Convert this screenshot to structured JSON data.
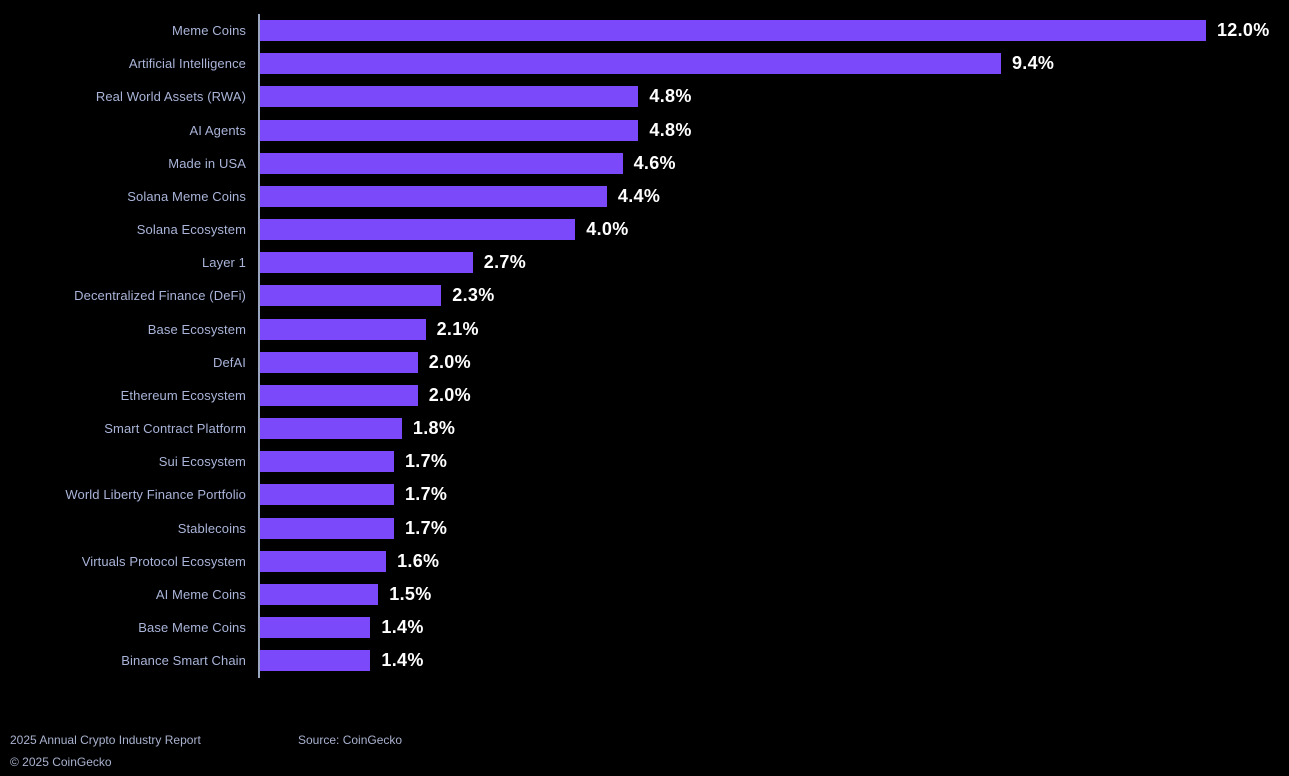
{
  "colors": {
    "background": "#000000",
    "bar": "#7c49fa",
    "category_label": "#a9b4d8",
    "value_label": "#ffffff",
    "axis_line": "#9aa7bf",
    "footer_text": "#a9b2ce"
  },
  "chart_data": {
    "type": "bar",
    "orientation": "horizontal",
    "title": "",
    "xlabel": "",
    "ylabel": "",
    "unit": "%",
    "xlim": [
      0,
      12
    ],
    "grid": false,
    "legend": "none",
    "categories": [
      "Meme Coins",
      "Artificial Intelligence",
      "Real World Assets (RWA)",
      "AI Agents",
      "Made in USA",
      "Solana Meme Coins",
      "Solana Ecosystem",
      "Layer 1",
      "Decentralized Finance (DeFi)",
      "Base Ecosystem",
      "DefAI",
      "Ethereum Ecosystem",
      "Smart Contract Platform",
      "Sui Ecosystem",
      "World Liberty Finance Portfolio",
      "Stablecoins",
      "Virtuals Protocol Ecosystem",
      "AI Meme Coins",
      "Base Meme Coins",
      "Binance Smart Chain"
    ],
    "values": [
      12.0,
      9.4,
      4.8,
      4.8,
      4.6,
      4.4,
      4.0,
      2.7,
      2.3,
      2.1,
      2.0,
      2.0,
      1.8,
      1.7,
      1.7,
      1.7,
      1.6,
      1.5,
      1.4,
      1.4
    ],
    "value_labels": [
      "12.0%",
      "9.4%",
      "4.8%",
      "4.8%",
      "4.6%",
      "4.4%",
      "4.0%",
      "2.7%",
      "2.3%",
      "2.1%",
      "2.0%",
      "2.0%",
      "1.8%",
      "1.7%",
      "1.7%",
      "1.7%",
      "1.6%",
      "1.5%",
      "1.4%",
      "1.4%"
    ]
  },
  "footer": {
    "report_title": "2025 Annual Crypto Industry Report",
    "copyright": "© 2025 CoinGecko",
    "source": "Source: CoinGecko"
  }
}
